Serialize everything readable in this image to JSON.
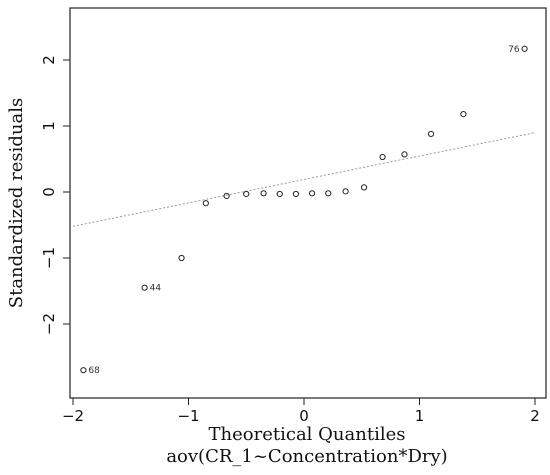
{
  "chart_data": {
    "type": "scatter",
    "title": "",
    "xlabel": "Theoretical Quantiles",
    "xlabel2": "aov(CR_1~Concentration*Dry)",
    "ylabel": "Standardized residuals",
    "xlim": [
      -2.0,
      2.0
    ],
    "ylim": [
      -2.75,
      2.6
    ],
    "x_ticks": [
      -2,
      -1,
      0,
      1,
      2
    ],
    "x_tick_labels": [
      "−2",
      "−1",
      "0",
      "1",
      "2"
    ],
    "y_ticks": [
      -2,
      -1,
      0,
      1,
      2
    ],
    "y_tick_labels": [
      "−2",
      "−1",
      "0",
      "1",
      "2"
    ],
    "grid": false,
    "reference_line": {
      "x": [
        -2.0,
        2.0
      ],
      "y": [
        -0.52,
        0.9
      ],
      "style": "dotted"
    },
    "points": [
      {
        "x": -1.91,
        "y": -2.7,
        "label": "68"
      },
      {
        "x": -1.38,
        "y": -1.45,
        "label": "44"
      },
      {
        "x": -1.06,
        "y": -1.0
      },
      {
        "x": -0.85,
        "y": -0.17
      },
      {
        "x": -0.67,
        "y": -0.06
      },
      {
        "x": -0.5,
        "y": -0.03
      },
      {
        "x": -0.35,
        "y": -0.02
      },
      {
        "x": -0.21,
        "y": -0.03
      },
      {
        "x": -0.07,
        "y": -0.03
      },
      {
        "x": 0.07,
        "y": -0.02
      },
      {
        "x": 0.21,
        "y": -0.02
      },
      {
        "x": 0.36,
        "y": 0.01
      },
      {
        "x": 0.52,
        "y": 0.07
      },
      {
        "x": 0.68,
        "y": 0.53
      },
      {
        "x": 0.87,
        "y": 0.57
      },
      {
        "x": 1.1,
        "y": 0.88
      },
      {
        "x": 1.38,
        "y": 1.18
      },
      {
        "x": 1.91,
        "y": 2.17,
        "label": "76"
      }
    ]
  }
}
